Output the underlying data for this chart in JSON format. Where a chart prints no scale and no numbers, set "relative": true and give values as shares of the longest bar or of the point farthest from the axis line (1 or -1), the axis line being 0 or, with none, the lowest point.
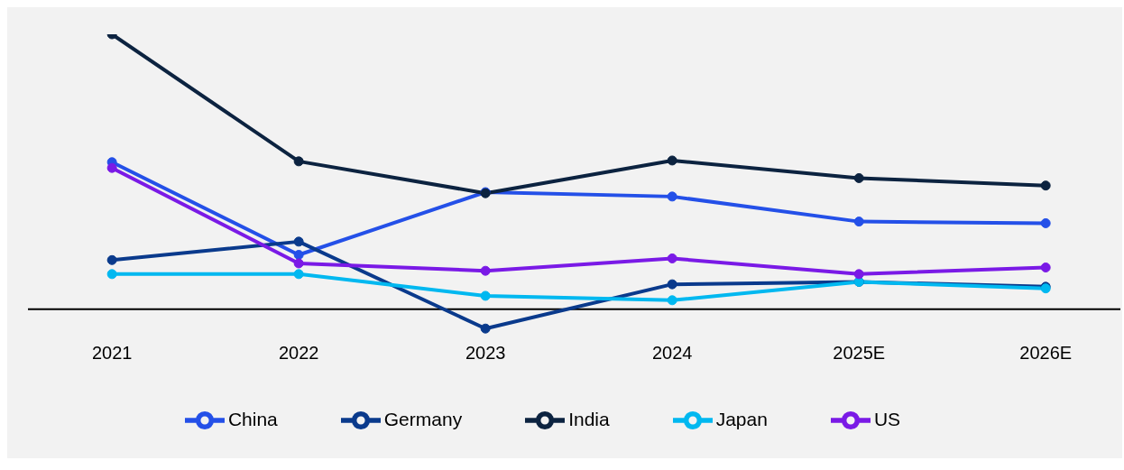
{
  "chart_data": {
    "type": "line",
    "relative": true,
    "categories": [
      "2021",
      "2022",
      "2023",
      "2024",
      "2025E",
      "2026E"
    ],
    "series": [
      {
        "name": "China",
        "color": "#2450e8",
        "values": [
          0.535,
          0.198,
          0.426,
          0.41,
          0.319,
          0.313
        ]
      },
      {
        "name": "Germany",
        "color": "#0a3a8c",
        "values": [
          0.179,
          0.246,
          -0.07,
          0.091,
          0.1,
          0.082
        ]
      },
      {
        "name": "India",
        "color": "#0c2340",
        "values": [
          1,
          0.538,
          0.422,
          0.541,
          0.477,
          0.45
        ]
      },
      {
        "name": "Japan",
        "color": "#00b8f0",
        "values": [
          0.128,
          0.128,
          0.049,
          0.033,
          0.1,
          0.076
        ]
      },
      {
        "name": "US",
        "color": "#7a1ae6",
        "values": [
          0.514,
          0.167,
          0.14,
          0.185,
          0.128,
          0.152
        ]
      }
    ],
    "legend": "bottom",
    "grid": false,
    "marker": "circle",
    "line_style": "solid"
  }
}
